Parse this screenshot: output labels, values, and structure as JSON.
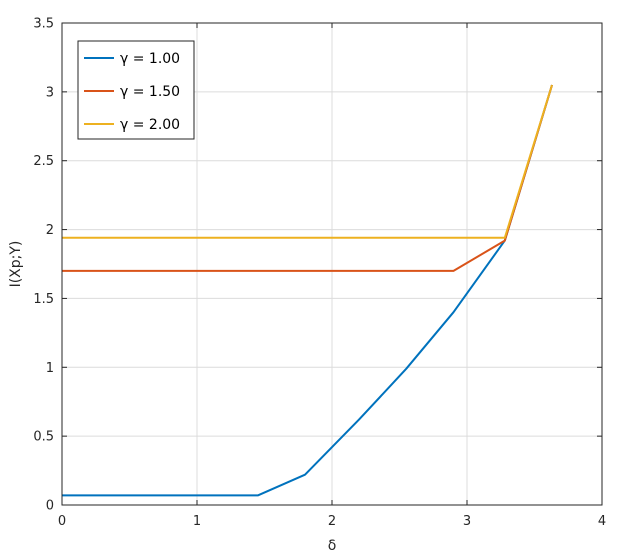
{
  "chart_data": {
    "type": "line",
    "title": "",
    "xlabel": "δ",
    "ylabel": "I(Xp;Y)",
    "xlim": [
      0,
      4
    ],
    "ylim": [
      0,
      3.5
    ],
    "xticks": [
      "0",
      "1",
      "2",
      "3",
      "4"
    ],
    "yticks": [
      "0",
      "0.5",
      "1",
      "1.5",
      "2",
      "2.5",
      "3",
      "3.5"
    ],
    "grid": true,
    "legend_position": "top-left",
    "series": [
      {
        "name": "γ = 1.00",
        "color": "#0072BD",
        "x": [
          0,
          0.5,
          1.0,
          1.45,
          1.8,
          2.2,
          2.55,
          2.9,
          3.28,
          3.63
        ],
        "y": [
          0.07,
          0.07,
          0.07,
          0.07,
          0.22,
          0.62,
          0.99,
          1.4,
          1.92,
          3.05
        ]
      },
      {
        "name": "γ = 1.50",
        "color": "#D95319",
        "x": [
          0,
          1.0,
          2.0,
          2.9,
          3.28,
          3.63
        ],
        "y": [
          1.7,
          1.7,
          1.7,
          1.7,
          1.92,
          3.05
        ]
      },
      {
        "name": "γ = 2.00",
        "color": "#EDB120",
        "x": [
          0,
          1.0,
          2.0,
          3.0,
          3.28,
          3.63
        ],
        "y": [
          1.94,
          1.94,
          1.94,
          1.94,
          1.94,
          3.05
        ]
      }
    ]
  }
}
